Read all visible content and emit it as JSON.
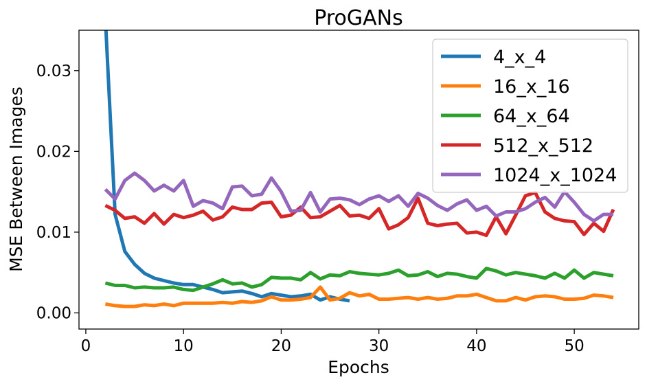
{
  "chart_data": {
    "type": "line",
    "title": "ProGANs",
    "xlabel": "Epochs",
    "ylabel": "MSE Between Images",
    "xlim": [
      -0.7,
      56.6
    ],
    "ylim": [
      -0.002,
      0.035
    ],
    "xticks": [
      0,
      10,
      20,
      30,
      40,
      50
    ],
    "xtick_labels": [
      "0",
      "10",
      "20",
      "30",
      "40",
      "50"
    ],
    "yticks": [
      0.0,
      0.01,
      0.02,
      0.03
    ],
    "ytick_labels": [
      "0.00",
      "0.01",
      "0.02",
      "0.03"
    ],
    "grid": false,
    "legend_position": "top-right",
    "series": [
      {
        "name": "4_x_4",
        "color": "#1f77b4",
        "x": [
          2,
          3,
          4,
          5,
          6,
          7,
          8,
          9,
          10,
          11,
          12,
          13,
          14,
          15,
          16,
          17,
          18,
          19,
          20,
          21,
          22,
          23,
          24,
          25,
          26,
          27
        ],
        "y": [
          0.0365,
          0.0122,
          0.0076,
          0.006,
          0.0049,
          0.0043,
          0.004,
          0.0037,
          0.0035,
          0.0035,
          0.0032,
          0.0029,
          0.0025,
          0.0026,
          0.0027,
          0.0024,
          0.002,
          0.0024,
          0.0022,
          0.002,
          0.0021,
          0.0023,
          0.0016,
          0.002,
          0.0017,
          0.0015
        ]
      },
      {
        "name": "16_x_16",
        "color": "#ff7f0e",
        "x": [
          2,
          3,
          4,
          5,
          6,
          7,
          8,
          9,
          10,
          11,
          12,
          13,
          14,
          15,
          16,
          17,
          18,
          19,
          20,
          21,
          22,
          23,
          24,
          25,
          26,
          27,
          28,
          29,
          30,
          31,
          32,
          33,
          34,
          35,
          36,
          37,
          38,
          39,
          40,
          41,
          42,
          43,
          44,
          45,
          46,
          47,
          48,
          49,
          50,
          51,
          52,
          53,
          54
        ],
        "y": [
          0.0011,
          0.0009,
          0.0008,
          0.0008,
          0.001,
          0.0009,
          0.0011,
          0.0009,
          0.0012,
          0.0012,
          0.0012,
          0.0012,
          0.0013,
          0.0012,
          0.0014,
          0.0013,
          0.0015,
          0.002,
          0.0016,
          0.0016,
          0.0017,
          0.0019,
          0.0032,
          0.0016,
          0.0018,
          0.0025,
          0.0021,
          0.0023,
          0.0017,
          0.0017,
          0.0018,
          0.0019,
          0.0017,
          0.0019,
          0.0017,
          0.0018,
          0.0021,
          0.0021,
          0.0023,
          0.0019,
          0.0015,
          0.0015,
          0.0019,
          0.0016,
          0.002,
          0.0021,
          0.002,
          0.0017,
          0.0017,
          0.0018,
          0.0022,
          0.0021,
          0.0019
        ]
      },
      {
        "name": "64_x_64",
        "color": "#2ca02c",
        "x": [
          2,
          3,
          4,
          5,
          6,
          7,
          8,
          9,
          10,
          11,
          12,
          13,
          14,
          15,
          16,
          17,
          18,
          19,
          20,
          21,
          22,
          23,
          24,
          25,
          26,
          27,
          28,
          29,
          30,
          31,
          32,
          33,
          34,
          35,
          36,
          37,
          38,
          39,
          40,
          41,
          42,
          43,
          44,
          45,
          46,
          47,
          48,
          49,
          50,
          51,
          52,
          53,
          54
        ],
        "y": [
          0.0037,
          0.0034,
          0.0034,
          0.0031,
          0.0032,
          0.0031,
          0.0031,
          0.0032,
          0.0029,
          0.0028,
          0.0032,
          0.0036,
          0.0041,
          0.0036,
          0.0037,
          0.0032,
          0.0035,
          0.0044,
          0.0043,
          0.0043,
          0.0041,
          0.005,
          0.0042,
          0.0047,
          0.0046,
          0.0051,
          0.0049,
          0.0048,
          0.0047,
          0.0049,
          0.0053,
          0.0046,
          0.0047,
          0.0051,
          0.0045,
          0.0049,
          0.0048,
          0.0045,
          0.0043,
          0.0055,
          0.0052,
          0.0047,
          0.005,
          0.0048,
          0.0046,
          0.0043,
          0.0049,
          0.0043,
          0.0053,
          0.0043,
          0.005,
          0.0048,
          0.0046
        ]
      },
      {
        "name": "512_x_512",
        "color": "#d62728",
        "x": [
          2,
          3,
          4,
          5,
          6,
          7,
          8,
          9,
          10,
          11,
          12,
          13,
          14,
          15,
          16,
          17,
          18,
          19,
          20,
          21,
          22,
          23,
          24,
          25,
          26,
          27,
          28,
          29,
          30,
          31,
          32,
          33,
          34,
          35,
          36,
          37,
          38,
          39,
          40,
          41,
          42,
          43,
          44,
          45,
          46,
          47,
          48,
          49,
          50,
          51,
          52,
          53,
          54
        ],
        "y": [
          0.0133,
          0.0127,
          0.0117,
          0.0119,
          0.0111,
          0.0123,
          0.011,
          0.0122,
          0.0118,
          0.0121,
          0.0126,
          0.0115,
          0.0119,
          0.0131,
          0.0128,
          0.0128,
          0.0136,
          0.0137,
          0.0119,
          0.0121,
          0.0131,
          0.0118,
          0.0119,
          0.0126,
          0.0133,
          0.012,
          0.0121,
          0.0117,
          0.0129,
          0.0104,
          0.0109,
          0.0118,
          0.0142,
          0.0111,
          0.0108,
          0.011,
          0.0111,
          0.0099,
          0.01,
          0.0096,
          0.0119,
          0.0098,
          0.0121,
          0.0145,
          0.0149,
          0.0125,
          0.0117,
          0.0114,
          0.0113,
          0.0097,
          0.0111,
          0.0101,
          0.0128
        ]
      },
      {
        "name": "1024_x_1024",
        "color": "#9467bd",
        "x": [
          2,
          3,
          4,
          5,
          6,
          7,
          8,
          9,
          10,
          11,
          12,
          13,
          14,
          15,
          16,
          17,
          18,
          19,
          20,
          21,
          22,
          23,
          24,
          25,
          26,
          27,
          28,
          29,
          30,
          31,
          32,
          33,
          34,
          35,
          36,
          37,
          38,
          39,
          40,
          41,
          42,
          43,
          44,
          45,
          46,
          47,
          48,
          49,
          50,
          51,
          52,
          53,
          54
        ],
        "y": [
          0.0153,
          0.0141,
          0.0164,
          0.0173,
          0.0164,
          0.0151,
          0.0158,
          0.0151,
          0.0164,
          0.0132,
          0.0139,
          0.0136,
          0.0129,
          0.0156,
          0.0157,
          0.0145,
          0.0147,
          0.0167,
          0.015,
          0.0126,
          0.0127,
          0.0149,
          0.0125,
          0.0141,
          0.0142,
          0.014,
          0.0134,
          0.0141,
          0.0145,
          0.0138,
          0.0145,
          0.0132,
          0.0148,
          0.0142,
          0.0133,
          0.0127,
          0.0135,
          0.014,
          0.0127,
          0.0132,
          0.012,
          0.0125,
          0.0125,
          0.0129,
          0.0137,
          0.0143,
          0.0131,
          0.015,
          0.0137,
          0.0122,
          0.0114,
          0.0122,
          0.0122
        ]
      }
    ]
  }
}
